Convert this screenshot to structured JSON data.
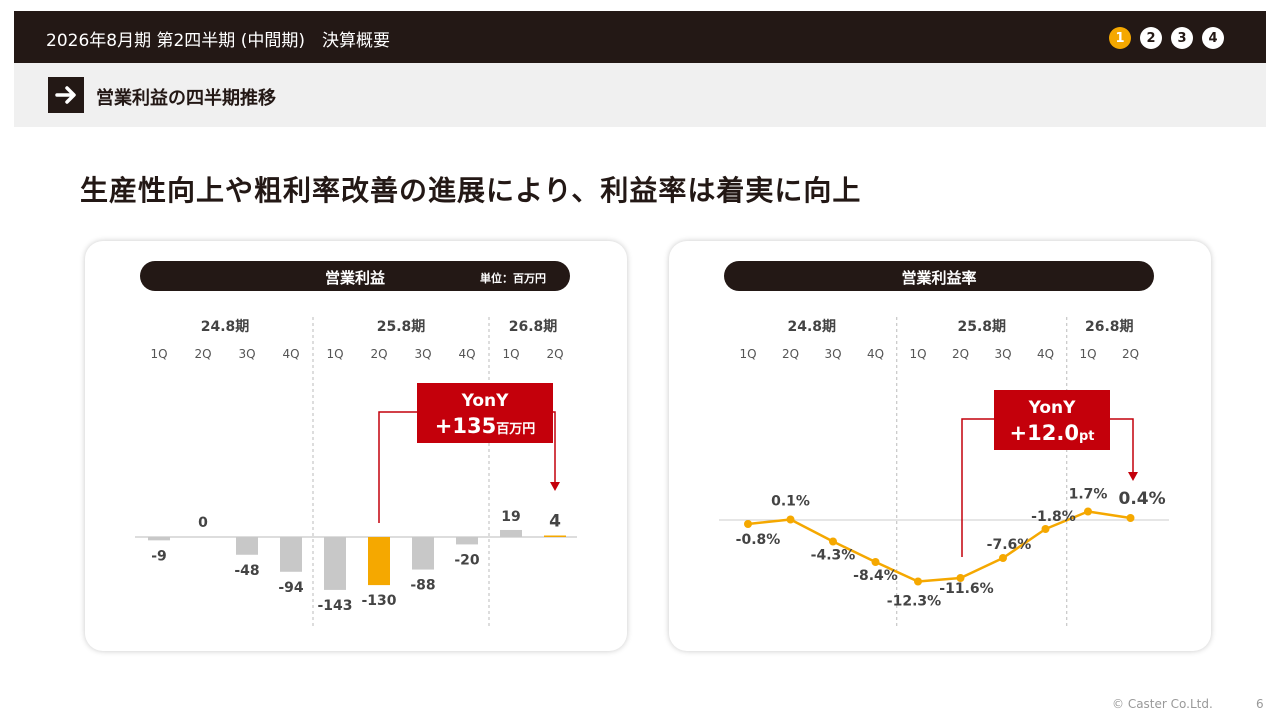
{
  "header": {
    "title": "2026年8月期 第2四半期 (中間期)　決算概要",
    "pages": [
      "1",
      "2",
      "3",
      "4"
    ],
    "active_page": "1"
  },
  "section": {
    "title": "営業利益の四半期推移"
  },
  "headline": "生産性向上や粗利率改善の進展により、利益率は着実に向上",
  "footer": {
    "copyright": "© Caster Co.Ltd.",
    "page_number": "6"
  },
  "colors": {
    "dark": "#231815",
    "accent": "#f5a800",
    "gray_bar": "#c8c8c8",
    "red_box": "#c4000b"
  },
  "chart_data": [
    {
      "type": "bar",
      "title": "営業利益",
      "unit": "単位：百万円",
      "groups": [
        {
          "label": "24.8期",
          "categories": [
            "1Q",
            "2Q",
            "3Q",
            "4Q"
          ]
        },
        {
          "label": "25.8期",
          "categories": [
            "1Q",
            "2Q",
            "3Q",
            "4Q"
          ]
        },
        {
          "label": "26.8期",
          "categories": [
            "1Q",
            "2Q"
          ]
        }
      ],
      "values": [
        -9,
        0,
        -48,
        -94,
        -143,
        -130,
        -88,
        -20,
        19,
        4
      ],
      "labels": [
        "-9",
        "0",
        "-48",
        "-94",
        "-143",
        "-130",
        "-88",
        "-20",
        "19",
        "4"
      ],
      "highlight": [
        5,
        9
      ],
      "callout": {
        "line1": "YonY",
        "line2_value": "+135",
        "line2_unit": "百万円"
      }
    },
    {
      "type": "line",
      "title": "営業利益率",
      "groups": [
        {
          "label": "24.8期",
          "categories": [
            "1Q",
            "2Q",
            "3Q",
            "4Q"
          ]
        },
        {
          "label": "25.8期",
          "categories": [
            "1Q",
            "2Q",
            "3Q",
            "4Q"
          ]
        },
        {
          "label": "26.8期",
          "categories": [
            "1Q",
            "2Q"
          ]
        }
      ],
      "values": [
        -0.8,
        0.1,
        -4.3,
        -8.4,
        -12.3,
        -11.6,
        -7.6,
        -1.8,
        1.7,
        0.4
      ],
      "labels": [
        "-0.8%",
        "0.1%",
        "-4.3%",
        "-8.4%",
        "-12.3%",
        "-11.6%",
        "-7.6%",
        "-1.8%",
        "1.7%",
        "0.4%"
      ],
      "callout": {
        "line1": "YonY",
        "line2_value": "+12.0",
        "line2_unit": "pt"
      }
    }
  ]
}
